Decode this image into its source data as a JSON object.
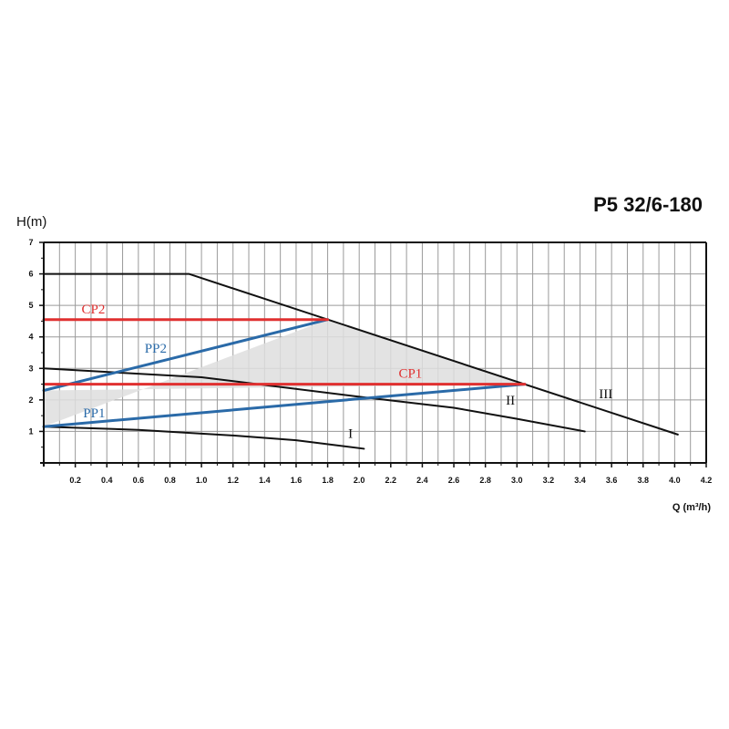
{
  "chart_data": {
    "type": "line",
    "title": "P5 32/6-180",
    "ylabel": "H(m)",
    "xlabel": "Q (m³/h)",
    "xlim": [
      0,
      4.2
    ],
    "ylim": [
      0,
      7
    ],
    "x_ticks": [
      0.2,
      0.4,
      0.6,
      0.8,
      1.0,
      1.2,
      1.4,
      1.6,
      1.8,
      2.0,
      2.2,
      2.4,
      2.6,
      2.8,
      3.0,
      3.2,
      3.4,
      3.6,
      3.8,
      4.0,
      4.2
    ],
    "x_tick_labels": [
      "0.2",
      "0.4",
      "0.6",
      "0.8",
      "1.0",
      "1.2",
      "1.4",
      "1.6",
      "1.8",
      "2.0",
      "2.2",
      "2.4",
      "2.6",
      "2.8",
      "3.0",
      "3.2",
      "3.4",
      "3.6",
      "3.8",
      "4.0",
      "4.2"
    ],
    "y_ticks": [
      1,
      2,
      3,
      4,
      5,
      6,
      7
    ],
    "y_tick_labels": [
      "1",
      "2",
      "3",
      "4",
      "5",
      "6",
      "7"
    ],
    "grid": true,
    "colors": {
      "fixed_speed": "#111111",
      "constant_pressure": "#e03030",
      "proportional_pressure": "#2a6aa8",
      "shaded_area": "#dedede"
    },
    "shaded_region": {
      "x": [
        0.0,
        1.8,
        3.05,
        0.0
      ],
      "y": [
        1.15,
        4.55,
        2.5,
        2.3
      ]
    },
    "series": [
      {
        "name": "III",
        "group": "fixed_speed",
        "x": [
          0.0,
          0.92,
          4.02
        ],
        "y": [
          6.0,
          6.0,
          0.9
        ]
      },
      {
        "name": "II",
        "group": "fixed_speed",
        "x": [
          0.0,
          1.0,
          2.0,
          2.6,
          3.0,
          3.43
        ],
        "y": [
          3.0,
          2.72,
          2.1,
          1.75,
          1.4,
          1.0
        ]
      },
      {
        "name": "I",
        "group": "fixed_speed",
        "x": [
          0.0,
          0.6,
          1.2,
          1.6,
          2.03
        ],
        "y": [
          1.15,
          1.05,
          0.87,
          0.72,
          0.45
        ]
      },
      {
        "name": "CP2",
        "group": "constant_pressure",
        "x": [
          0.0,
          1.8
        ],
        "y": [
          4.55,
          4.55
        ]
      },
      {
        "name": "CP1",
        "group": "constant_pressure",
        "x": [
          0.0,
          3.05
        ],
        "y": [
          2.5,
          2.5
        ]
      },
      {
        "name": "PP2",
        "group": "proportional_pressure",
        "x": [
          0.0,
          1.8
        ],
        "y": [
          2.3,
          4.55
        ]
      },
      {
        "name": "PP1",
        "group": "proportional_pressure",
        "x": [
          0.0,
          3.05
        ],
        "y": [
          1.15,
          2.5
        ]
      }
    ],
    "curve_labels": [
      {
        "text": "III",
        "x": 3.52,
        "y": 2.05,
        "group": "fixed_speed"
      },
      {
        "text": "II",
        "x": 2.93,
        "y": 1.85,
        "group": "fixed_speed"
      },
      {
        "text": "I",
        "x": 1.93,
        "y": 0.8,
        "group": "fixed_speed"
      },
      {
        "text": "CP2",
        "x": 0.24,
        "y": 4.75,
        "group": "constant_pressure"
      },
      {
        "text": "CP1",
        "x": 2.25,
        "y": 2.7,
        "group": "constant_pressure"
      },
      {
        "text": "PP2",
        "x": 0.64,
        "y": 3.5,
        "group": "proportional_pressure"
      },
      {
        "text": "PP1",
        "x": 0.25,
        "y": 1.45,
        "group": "proportional_pressure"
      }
    ]
  }
}
